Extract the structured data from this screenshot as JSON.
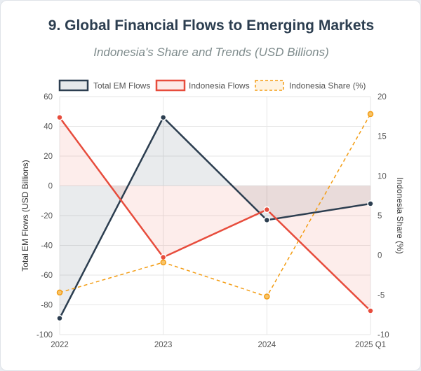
{
  "page": {
    "title": "9. Global Financial Flows to Emerging Markets",
    "subtitle": "Indonesia's Share and Trends (USD Billions)"
  },
  "colors": {
    "total": "#2c3e50",
    "indonesia": "#e74c3c",
    "share": "#f39c12",
    "total_fill": "rgba(44,62,80,0.10)",
    "indonesia_fill": "rgba(231,76,60,0.10)",
    "grid": "#e6e6e6"
  },
  "chart_data": {
    "type": "line",
    "categories": [
      "2022",
      "2023",
      "2024",
      "2025 Q1"
    ],
    "series": [
      {
        "name": "Total EM Flows",
        "axis": "left",
        "values": [
          -89,
          46,
          -23,
          -12
        ],
        "style": "solid",
        "fill": true
      },
      {
        "name": "Indonesia Flows",
        "axis": "left",
        "values": [
          46,
          -48,
          -16,
          -84
        ],
        "style": "solid",
        "fill": true
      },
      {
        "name": "Indonesia Share (%)",
        "axis": "right",
        "values": [
          -4.7,
          -0.9,
          -5.2,
          17.8
        ],
        "style": "dashed",
        "fill": false
      }
    ],
    "ylabel": "Total EM Flows (USD Billions)",
    "y2label": "Indonesia Share (%)",
    "ylim": [
      -100,
      60
    ],
    "y2lim": [
      -10,
      20
    ],
    "yticks": [
      60,
      40,
      20,
      0,
      -20,
      -40,
      -60,
      -80,
      -100
    ],
    "y2ticks": [
      20,
      15,
      10,
      5,
      0,
      -5,
      -10
    ],
    "grid": true,
    "legend": "top"
  }
}
